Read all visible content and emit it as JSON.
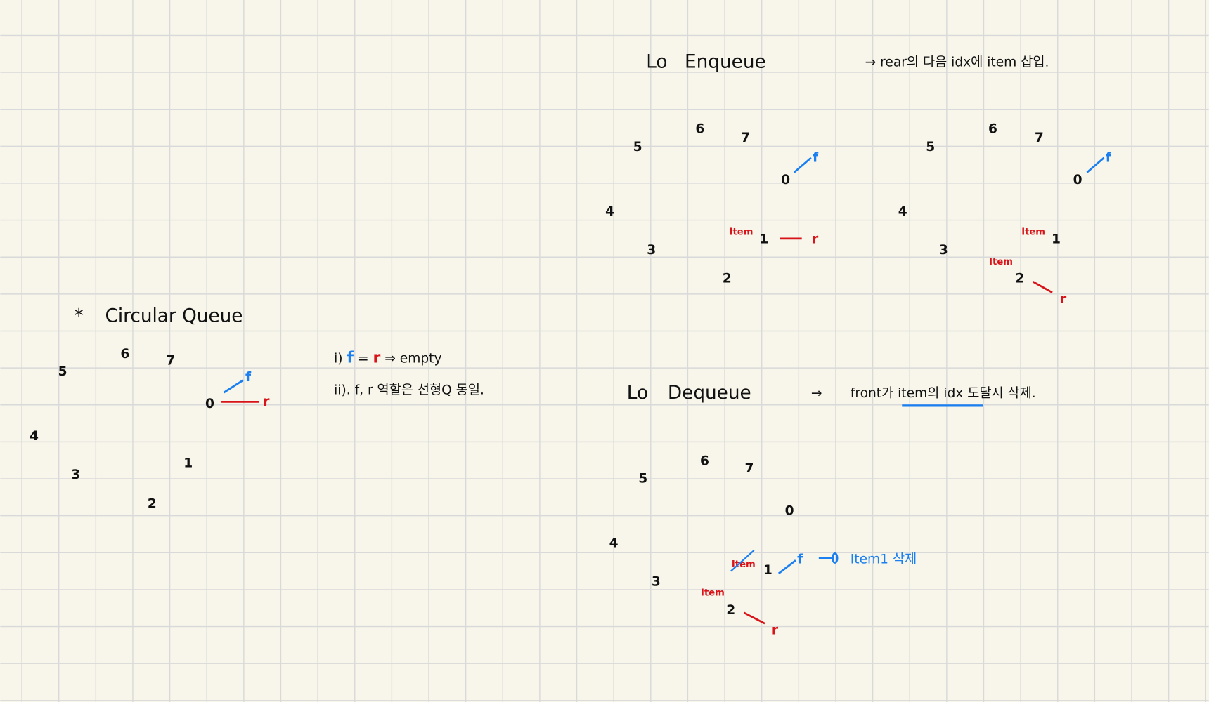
{
  "colors": {
    "paper": "#f8f6ea",
    "grid": "#d9d9d9",
    "ink": "#111111",
    "front": "#1a7ff0",
    "rear": "#d8141a"
  },
  "circular": {
    "bullet": "*",
    "title": "Circular Queue",
    "indices": [
      "0",
      "1",
      "2",
      "3",
      "4",
      "5",
      "6",
      "7"
    ],
    "front": "f",
    "rear": "r",
    "note1": {
      "prefix": "i)",
      "f": "f",
      "eq": "=",
      "r": "r",
      "suffix": "⇒ empty"
    },
    "note2": "ii). f, r 역할은 선형Q 동일."
  },
  "enqueue": {
    "marker": "Lo",
    "title": "Enqueue",
    "description": "→ rear의 다음 idx에 item 삽입.",
    "indices": [
      "0",
      "1",
      "2",
      "3",
      "4",
      "5",
      "6",
      "7"
    ],
    "front": "f",
    "rear": "r",
    "item": "Item"
  },
  "dequeue": {
    "marker": "Lo",
    "title": "Dequeue",
    "arrow": "→",
    "description": "front가 item의 idx 도달시 삭제.",
    "indices": [
      "0",
      "1",
      "2",
      "3",
      "4",
      "5",
      "6",
      "7"
    ],
    "front": "f",
    "rear": "r",
    "item": "Item",
    "note": "Item1 삭제"
  }
}
